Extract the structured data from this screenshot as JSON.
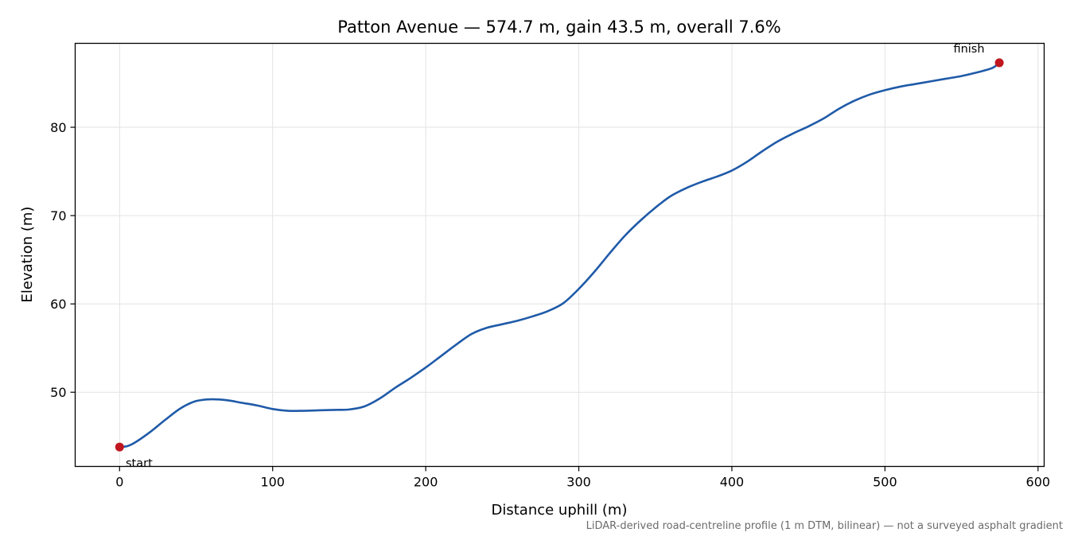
{
  "chart_data": {
    "type": "line",
    "title": "Patton Avenue — 574.7 m, gain 43.5 m, overall 7.6%",
    "xlabel": "Distance uphill (m)",
    "ylabel": "Elevation (m)",
    "xlim": [
      -29,
      604
    ],
    "ylim": [
      41.6,
      89.5
    ],
    "xticks": [
      0,
      100,
      200,
      300,
      400,
      500,
      600
    ],
    "yticks": [
      50,
      60,
      70,
      80
    ],
    "grid": true,
    "line_color": "#1f5aa8",
    "marker_color": "#c0161f",
    "series": [
      {
        "x": [
          0,
          5,
          10,
          20,
          30,
          40,
          50,
          60,
          70,
          80,
          90,
          100,
          110,
          120,
          130,
          140,
          150,
          160,
          170,
          180,
          190,
          200,
          210,
          220,
          230,
          240,
          250,
          260,
          270,
          280,
          290,
          300,
          310,
          320,
          330,
          340,
          350,
          360,
          370,
          380,
          390,
          400,
          410,
          420,
          430,
          440,
          450,
          460,
          470,
          480,
          490,
          500,
          510,
          520,
          530,
          540,
          550,
          560,
          570,
          574.7
        ],
        "y": [
          43.8,
          43.9,
          44.3,
          45.5,
          46.9,
          48.2,
          49.0,
          49.2,
          49.1,
          48.8,
          48.5,
          48.1,
          47.9,
          47.9,
          47.95,
          48.0,
          48.05,
          48.4,
          49.3,
          50.5,
          51.6,
          52.8,
          54.1,
          55.4,
          56.6,
          57.3,
          57.7,
          58.1,
          58.6,
          59.2,
          60.1,
          61.7,
          63.6,
          65.7,
          67.7,
          69.4,
          70.9,
          72.2,
          73.1,
          73.8,
          74.4,
          75.1,
          76.1,
          77.3,
          78.4,
          79.3,
          80.1,
          81.0,
          82.1,
          83.0,
          83.7,
          84.2,
          84.6,
          84.9,
          85.2,
          85.5,
          85.8,
          86.2,
          86.7,
          87.3
        ]
      }
    ],
    "annotations": [
      {
        "label": "start",
        "x": 0,
        "y": 43.8
      },
      {
        "label": "finish",
        "x": 574.7,
        "y": 87.3
      }
    ],
    "footnote": "LiDAR-derived road-centreline profile (1 m DTM, bilinear) — not a surveyed asphalt gradient"
  }
}
